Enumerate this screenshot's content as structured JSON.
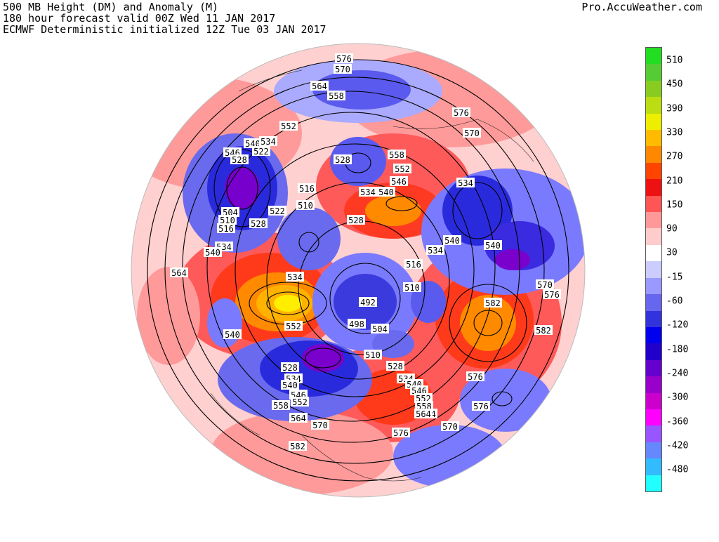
{
  "header": {
    "line1": "500 MB Height (DM) and Anomaly (M)",
    "line2": "180 hour forecast valid 00Z Wed 11 JAN 2017",
    "line3": "ECMWF Deterministic initialized 12Z Tue 03 JAN 2017"
  },
  "credit": "Pro.AccuWeather.com",
  "colorbar": {
    "labels": [
      "510",
      "450",
      "390",
      "330",
      "270",
      "210",
      "150",
      "90",
      "30",
      "-15",
      "-60",
      "-120",
      "-180",
      "-240",
      "-300",
      "-360",
      "-420",
      "-480"
    ],
    "colors": [
      "#22dd22",
      "#55cc33",
      "#88cc22",
      "#bbdd11",
      "#eeee00",
      "#ffbb00",
      "#ff8800",
      "#ff4400",
      "#ee1111",
      "#ff5555",
      "#ff9999",
      "#ffcccc",
      "#ffffff",
      "#ccccff",
      "#9999ff",
      "#6666ee",
      "#3333dd",
      "#0000ee",
      "#2200cc",
      "#6600cc",
      "#9900cc",
      "#cc00cc",
      "#ff00ff",
      "#9955ff",
      "#6688ff",
      "#33bbff",
      "#22ffff"
    ]
  },
  "contour_labels": [
    {
      "text": "576",
      "pos": "top"
    },
    {
      "text": "570",
      "pos": "top2"
    },
    {
      "text": "564",
      "pos": "nw-top"
    },
    {
      "text": "558",
      "pos": "nw-top2"
    },
    {
      "text": "552",
      "pos": "alaska"
    },
    {
      "text": "540",
      "pos": "siberia-1"
    },
    {
      "text": "534",
      "pos": "siberia-2"
    },
    {
      "text": "546",
      "pos": "siberia-3"
    },
    {
      "text": "522",
      "pos": "siberia-4"
    },
    {
      "text": "528",
      "pos": "siberia-5"
    },
    {
      "text": "504",
      "pos": "siberia-6"
    },
    {
      "text": "510",
      "pos": "siberia-7"
    },
    {
      "text": "516",
      "pos": "siberia-8"
    },
    {
      "text": "534",
      "pos": "siberia-9"
    },
    {
      "text": "540",
      "pos": "siberia-10"
    },
    {
      "text": "564",
      "pos": "west"
    },
    {
      "text": "528",
      "pos": "center-n"
    },
    {
      "text": "558",
      "pos": "center-ne"
    },
    {
      "text": "552",
      "pos": "center-ne2"
    },
    {
      "text": "546",
      "pos": "center-ne3"
    },
    {
      "text": "534",
      "pos": "center-ne4"
    },
    {
      "text": "540",
      "pos": "center-ne5"
    },
    {
      "text": "516",
      "pos": "center-1"
    },
    {
      "text": "510",
      "pos": "center-2"
    },
    {
      "text": "522",
      "pos": "center-3"
    },
    {
      "text": "528",
      "pos": "center-4"
    },
    {
      "text": "528",
      "pos": "center-5"
    },
    {
      "text": "534",
      "pos": "center-6"
    },
    {
      "text": "576",
      "pos": "ne-1"
    },
    {
      "text": "570",
      "pos": "ne-2"
    },
    {
      "text": "534",
      "pos": "ne-3"
    },
    {
      "text": "540",
      "pos": "e-1"
    },
    {
      "text": "540",
      "pos": "e-2"
    },
    {
      "text": "516",
      "pos": "e-3"
    },
    {
      "text": "510",
      "pos": "e-4"
    },
    {
      "text": "534",
      "pos": "e-5"
    },
    {
      "text": "570",
      "pos": "e-6"
    },
    {
      "text": "576",
      "pos": "e-7"
    },
    {
      "text": "582",
      "pos": "e-8"
    },
    {
      "text": "582",
      "pos": "e-9"
    },
    {
      "text": "492",
      "pos": "pole"
    },
    {
      "text": "498",
      "pos": "pole-2"
    },
    {
      "text": "504",
      "pos": "pole-3"
    },
    {
      "text": "552",
      "pos": "w-1"
    },
    {
      "text": "540",
      "pos": "w-2"
    },
    {
      "text": "510",
      "pos": "s-1"
    },
    {
      "text": "528",
      "pos": "s-2"
    },
    {
      "text": "534",
      "pos": "s-3"
    },
    {
      "text": "540",
      "pos": "s-4"
    },
    {
      "text": "546",
      "pos": "s-5"
    },
    {
      "text": "558",
      "pos": "s-6"
    },
    {
      "text": "552",
      "pos": "s-7"
    },
    {
      "text": "564",
      "pos": "s-8"
    },
    {
      "text": "570",
      "pos": "s-9"
    },
    {
      "text": "582",
      "pos": "s-10"
    },
    {
      "text": "576",
      "pos": "s-11"
    },
    {
      "text": "564",
      "pos": "s-12"
    },
    {
      "text": "570",
      "pos": "s-13"
    },
    {
      "text": "576",
      "pos": "se-1"
    },
    {
      "text": "576",
      "pos": "se-2"
    },
    {
      "text": "528",
      "pos": "se-3"
    },
    {
      "text": "534",
      "pos": "se-4"
    },
    {
      "text": "540",
      "pos": "se-5"
    },
    {
      "text": "546",
      "pos": "se-6"
    },
    {
      "text": "552",
      "pos": "se-7"
    },
    {
      "text": "558",
      "pos": "se-8"
    },
    {
      "text": "564",
      "pos": "se-9"
    }
  ]
}
